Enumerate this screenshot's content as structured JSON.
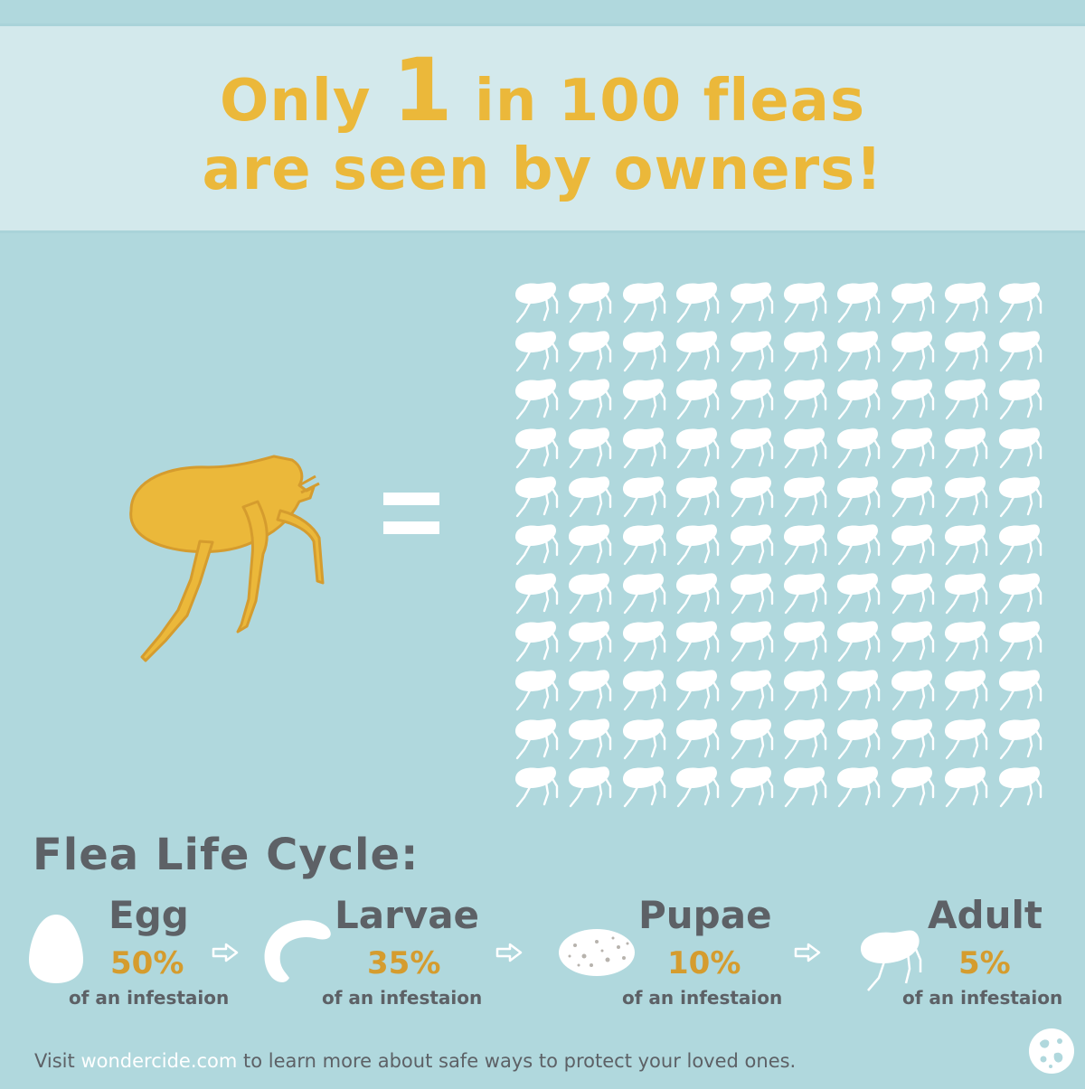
{
  "headline": {
    "part1": "Only ",
    "number": "1",
    "part2": " in 100 fleas",
    "line2": "are seen by owners!"
  },
  "grid": {
    "rows": 11,
    "cols": 10
  },
  "life_cycle": {
    "title": "Flea Life Cycle:",
    "stages": [
      {
        "name": "Egg",
        "percent": "50%",
        "caption": "of an infestaion",
        "icon": "egg-icon"
      },
      {
        "name": "Larvae",
        "percent": "35%",
        "caption": "of an infestaion",
        "icon": "larva-icon"
      },
      {
        "name": "Pupae",
        "percent": "10%",
        "caption": "of an infestaion",
        "icon": "pupa-icon"
      },
      {
        "name": "Adult",
        "percent": "5%",
        "caption": "of an infestaion",
        "icon": "adult-flea-icon"
      }
    ]
  },
  "footer": {
    "prefix": "Visit ",
    "link": "wondercide.com",
    "suffix": " to learn more about safe ways to protect your loved ones."
  },
  "colors": {
    "background": "#b0d8dd",
    "banner": "#d3e9ec",
    "accent_yellow": "#ebb83a",
    "percent_orange": "#d59c2e",
    "text_gray": "#5d6166",
    "white": "#ffffff"
  }
}
